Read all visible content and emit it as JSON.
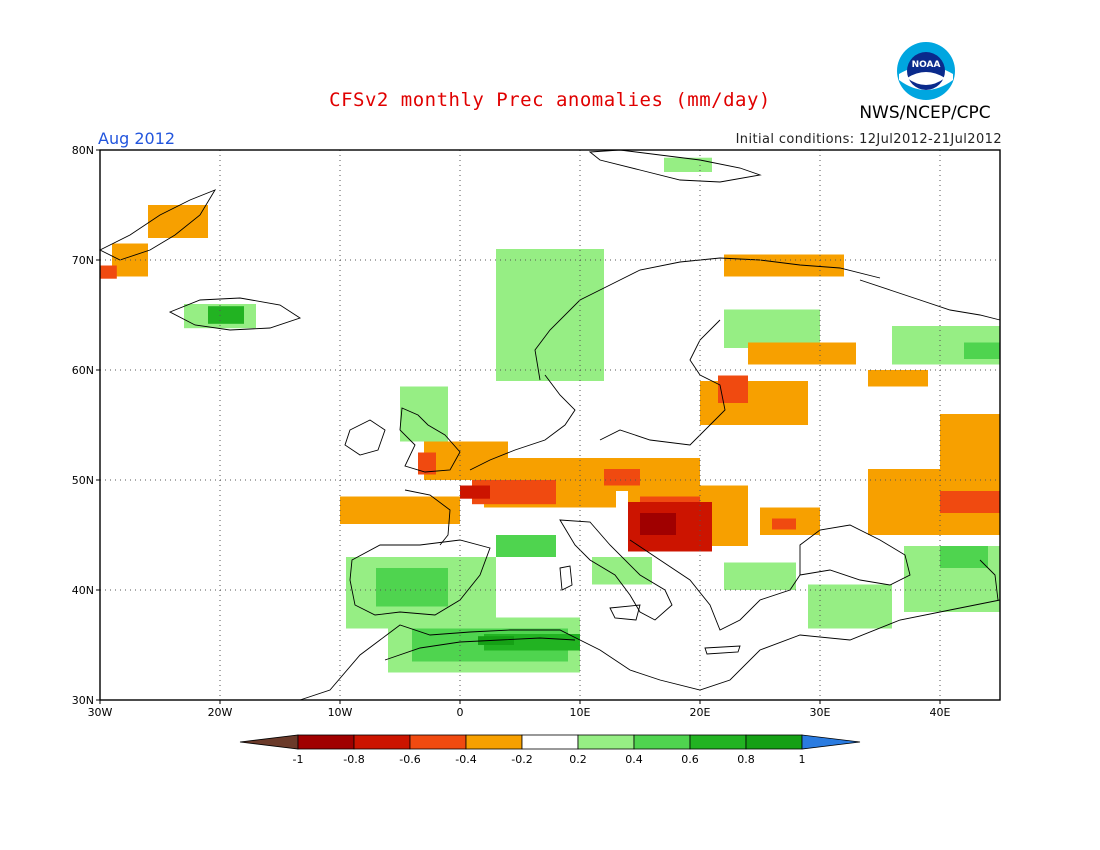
{
  "header": {
    "title": "CFSv2 monthly Prec anomalies (mm/day)",
    "period": "Aug 2012",
    "initial_conditions": "Initial conditions: 12Jul2012-21Jul2012",
    "agency": "NWS/NCEP/CPC",
    "logo_text": "NOAA"
  },
  "map": {
    "lon_range": [
      -30,
      45
    ],
    "lat_range": [
      30,
      80
    ],
    "lon_ticks": [
      {
        "value": -30,
        "label": "30W"
      },
      {
        "value": -20,
        "label": "20W"
      },
      {
        "value": -10,
        "label": "10W"
      },
      {
        "value": 0,
        "label": "0"
      },
      {
        "value": 10,
        "label": "10E"
      },
      {
        "value": 20,
        "label": "20E"
      },
      {
        "value": 30,
        "label": "30E"
      },
      {
        "value": 40,
        "label": "40E"
      }
    ],
    "lat_ticks": [
      {
        "value": 30,
        "label": "30N"
      },
      {
        "value": 40,
        "label": "40N"
      },
      {
        "value": 50,
        "label": "50N"
      },
      {
        "value": 60,
        "label": "60N"
      },
      {
        "value": 70,
        "label": "70N"
      },
      {
        "value": 80,
        "label": "80N"
      }
    ],
    "grid": "dotted",
    "anomaly_regions": [
      {
        "class": "-0.4..-0.2",
        "lon": [
          -29,
          -26
        ],
        "lat": [
          68.5,
          71.5
        ]
      },
      {
        "class": "-0.6..-0.4",
        "lon": [
          -30,
          -28.6
        ],
        "lat": [
          68.3,
          69.5
        ]
      },
      {
        "class": "-0.4..-0.2",
        "lon": [
          -26,
          -21
        ],
        "lat": [
          72,
          75
        ]
      },
      {
        "class": "0.2..0.4",
        "lon": [
          -23,
          -17
        ],
        "lat": [
          63.8,
          66
        ]
      },
      {
        "class": "0.6..0.8",
        "lon": [
          -21,
          -18
        ],
        "lat": [
          64.2,
          65.8
        ]
      },
      {
        "class": "0.2..0.4",
        "lon": [
          -5,
          -1
        ],
        "lat": [
          53.5,
          58.5
        ]
      },
      {
        "class": "0.2..0.4",
        "lon": [
          3,
          12
        ],
        "lat": [
          59,
          71
        ]
      },
      {
        "class": "0.2..0.4",
        "lon": [
          17,
          21
        ],
        "lat": [
          78,
          79.3
        ]
      },
      {
        "class": "-0.4..-0.2",
        "lon": [
          22,
          32
        ],
        "lat": [
          68.5,
          70.5
        ]
      },
      {
        "class": "0.2..0.4",
        "lon": [
          22,
          30
        ],
        "lat": [
          62,
          65.5
        ]
      },
      {
        "class": "-0.4..-0.2",
        "lon": [
          24,
          33
        ],
        "lat": [
          60.5,
          62.5
        ]
      },
      {
        "class": "0.2..0.4",
        "lon": [
          36,
          45
        ],
        "lat": [
          60.5,
          64
        ]
      },
      {
        "class": "0.4..0.6",
        "lon": [
          42,
          45
        ],
        "lat": [
          61,
          62.5
        ]
      },
      {
        "class": "-0.4..-0.2",
        "lon": [
          34,
          39
        ],
        "lat": [
          58.5,
          60
        ]
      },
      {
        "class": "-0.4..-0.2",
        "lon": [
          20,
          29
        ],
        "lat": [
          55,
          59
        ]
      },
      {
        "class": "-0.6..-0.4",
        "lon": [
          21.5,
          24
        ],
        "lat": [
          57,
          59.5
        ]
      },
      {
        "class": "-0.4..-0.2",
        "lon": [
          -10,
          0
        ],
        "lat": [
          46,
          48.5
        ]
      },
      {
        "class": "-0.4..-0.2",
        "lon": [
          -3,
          4
        ],
        "lat": [
          50,
          53.5
        ]
      },
      {
        "class": "-0.6..-0.4",
        "lon": [
          -3.5,
          -2
        ],
        "lat": [
          50.5,
          52.5
        ]
      },
      {
        "class": "-0.4..-0.2",
        "lon": [
          2,
          13
        ],
        "lat": [
          47.5,
          52
        ]
      },
      {
        "class": "-0.6..-0.4",
        "lon": [
          1,
          8
        ],
        "lat": [
          47.8,
          50
        ]
      },
      {
        "class": "-0.8..-0.6",
        "lon": [
          0,
          2.5
        ],
        "lat": [
          48.3,
          49.5
        ]
      },
      {
        "class": "-0.4..-0.2",
        "lon": [
          11,
          20
        ],
        "lat": [
          49,
          52
        ]
      },
      {
        "class": "-0.6..-0.4",
        "lon": [
          12,
          15
        ],
        "lat": [
          49.5,
          51
        ]
      },
      {
        "class": "-0.4..-0.2",
        "lon": [
          14,
          24
        ],
        "lat": [
          44,
          49.5
        ]
      },
      {
        "class": "-0.6..-0.4",
        "lon": [
          15,
          20
        ],
        "lat": [
          44.5,
          48.5
        ]
      },
      {
        "class": "-0.8..-0.6",
        "lon": [
          14,
          21
        ],
        "lat": [
          43.5,
          48
        ]
      },
      {
        "class": "-1..-0.8",
        "lon": [
          15,
          18
        ],
        "lat": [
          45,
          47
        ]
      },
      {
        "class": "-0.4..-0.2",
        "lon": [
          25,
          30
        ],
        "lat": [
          45,
          47.5
        ]
      },
      {
        "class": "-0.6..-0.4",
        "lon": [
          26,
          28
        ],
        "lat": [
          45.5,
          46.5
        ]
      },
      {
        "class": "-0.4..-0.2",
        "lon": [
          34,
          45
        ],
        "lat": [
          45,
          51
        ]
      },
      {
        "class": "-0.6..-0.4",
        "lon": [
          40,
          45
        ],
        "lat": [
          47,
          49
        ]
      },
      {
        "class": "-0.4..-0.2",
        "lon": [
          40,
          45
        ],
        "lat": [
          51,
          56
        ]
      },
      {
        "class": "0.2..0.4",
        "lon": [
          -9.5,
          3
        ],
        "lat": [
          36.5,
          43
        ]
      },
      {
        "class": "0.4..0.6",
        "lon": [
          -7,
          -1
        ],
        "lat": [
          38.5,
          42
        ]
      },
      {
        "class": "0.4..0.6",
        "lon": [
          3,
          8
        ],
        "lat": [
          43,
          45
        ]
      },
      {
        "class": "0.2..0.4",
        "lon": [
          -6,
          10
        ],
        "lat": [
          32.5,
          37.5
        ]
      },
      {
        "class": "0.4..0.6",
        "lon": [
          -4,
          9
        ],
        "lat": [
          33.5,
          36.5
        ]
      },
      {
        "class": "0.6..0.8",
        "lon": [
          2,
          10
        ],
        "lat": [
          34.5,
          36
        ]
      },
      {
        "class": "0.8..1",
        "lon": [
          1.5,
          4.5
        ],
        "lat": [
          35,
          35.8
        ]
      },
      {
        "class": "0.2..0.4",
        "lon": [
          11,
          16
        ],
        "lat": [
          40.5,
          43
        ]
      },
      {
        "class": "0.2..0.4",
        "lon": [
          22,
          28
        ],
        "lat": [
          40,
          42.5
        ]
      },
      {
        "class": "0.2..0.4",
        "lon": [
          29,
          36
        ],
        "lat": [
          36.5,
          40.5
        ]
      },
      {
        "class": "0.2..0.4",
        "lon": [
          37,
          45
        ],
        "lat": [
          38,
          44
        ]
      },
      {
        "class": "0.4..0.6",
        "lon": [
          40,
          44
        ],
        "lat": [
          42,
          44
        ]
      }
    ]
  },
  "colorbar": {
    "labels": [
      "-1",
      "-0.8",
      "-0.6",
      "-0.4",
      "-0.2",
      "0.2",
      "0.4",
      "0.6",
      "0.8",
      "1"
    ],
    "classes": [
      {
        "range": "<-1",
        "color": "#6b3a2a"
      },
      {
        "range": "-1..-0.8",
        "color": "#a00000"
      },
      {
        "range": "-0.8..-0.6",
        "color": "#cc1400"
      },
      {
        "range": "-0.6..-0.4",
        "color": "#f04a10"
      },
      {
        "range": "-0.4..-0.2",
        "color": "#f7a000"
      },
      {
        "range": "-0.2..0.2",
        "color": "#ffffff"
      },
      {
        "range": "0.2..0.4",
        "color": "#96ee84"
      },
      {
        "range": "0.4..0.6",
        "color": "#4fd44f"
      },
      {
        "range": "0.6..0.8",
        "color": "#22b322"
      },
      {
        "range": "0.8..1",
        "color": "#15a015"
      },
      {
        "range": ">1",
        "color": "#2a7be0"
      }
    ]
  }
}
